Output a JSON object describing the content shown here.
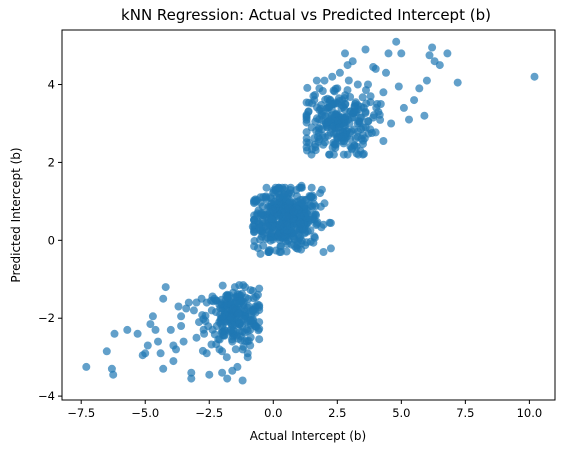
{
  "chart_data": {
    "type": "scatter",
    "title": "kNN Regression: Actual vs Predicted Intercept (b)",
    "xlabel": "Actual Intercept (b)",
    "ylabel": "Predicted Intercept (b)",
    "xlim": [
      -8.25,
      11.0
    ],
    "ylim": [
      -4.1,
      5.4
    ],
    "xticks": [
      -7.5,
      -5.0,
      -2.5,
      0.0,
      2.5,
      5.0,
      7.5,
      10.0
    ],
    "xtick_labels": [
      "−7.5",
      "−5.0",
      "−2.5",
      "0.0",
      "2.5",
      "5.0",
      "7.5",
      "10.0"
    ],
    "yticks": [
      -4,
      -2,
      0,
      2,
      4
    ],
    "ytick_labels": [
      "−4",
      "−2",
      "0",
      "2",
      "4"
    ],
    "grid": false,
    "color": "#1f77b4",
    "series": [
      {
        "points": [
          [
            -7.3,
            -3.25
          ],
          [
            -6.5,
            -2.85
          ],
          [
            -6.3,
            -3.3
          ],
          [
            -6.25,
            -3.45
          ],
          [
            -6.2,
            -2.4
          ],
          [
            -5.7,
            -2.3
          ],
          [
            -5.3,
            -2.4
          ],
          [
            -5.0,
            -2.9
          ],
          [
            -4.9,
            -2.7
          ],
          [
            -4.8,
            -2.15
          ],
          [
            -4.7,
            -1.95
          ],
          [
            -4.5,
            -2.6
          ],
          [
            -4.4,
            -2.9
          ],
          [
            -4.3,
            -3.3
          ],
          [
            -4.3,
            -1.5
          ],
          [
            -4.2,
            -1.2
          ],
          [
            -4.0,
            -2.3
          ],
          [
            -3.9,
            -2.7
          ],
          [
            -3.8,
            -2.8
          ],
          [
            -3.7,
            -1.7
          ],
          [
            -3.6,
            -2.2
          ],
          [
            -3.5,
            -2.6
          ],
          [
            -3.4,
            -1.75
          ],
          [
            -3.3,
            -1.6
          ],
          [
            -3.2,
            -3.4
          ],
          [
            -3.2,
            -3.55
          ],
          [
            -3.0,
            -2.5
          ],
          [
            -2.9,
            -2.1
          ],
          [
            -2.8,
            -1.5
          ],
          [
            -2.6,
            -2.9
          ],
          [
            -2.5,
            -3.45
          ],
          [
            -2.3,
            -1.5
          ],
          [
            -2.1,
            -2.8
          ],
          [
            -2.0,
            -3.4
          ],
          [
            -2.0,
            -2.85
          ],
          [
            -1.8,
            -3.55
          ],
          [
            -1.6,
            -3.35
          ],
          [
            -1.5,
            -1.9
          ],
          [
            -1.4,
            -3.25
          ],
          [
            -1.2,
            -3.6
          ],
          [
            -1.0,
            -3.0
          ],
          [
            -0.9,
            -2.3
          ],
          [
            -0.7,
            -1.7
          ],
          [
            -1.8,
            -1.4
          ],
          [
            -3.6,
            -1.95
          ],
          [
            -3.1,
            -1.8
          ],
          [
            -2.7,
            -2.4
          ],
          [
            -4.6,
            -2.3
          ],
          [
            -5.1,
            -2.95
          ],
          [
            -3.9,
            -3.1
          ],
          [
            10.2,
            4.2
          ],
          [
            7.2,
            4.05
          ],
          [
            6.8,
            4.8
          ],
          [
            6.5,
            4.5
          ],
          [
            6.3,
            4.6
          ],
          [
            6.2,
            4.95
          ],
          [
            6.1,
            4.75
          ],
          [
            5.7,
            3.9
          ],
          [
            6.0,
            4.1
          ],
          [
            5.9,
            3.2
          ],
          [
            5.5,
            3.6
          ],
          [
            5.3,
            3.1
          ],
          [
            4.8,
            5.1
          ],
          [
            4.5,
            4.8
          ],
          [
            4.9,
            3.95
          ],
          [
            4.4,
            4.3
          ],
          [
            4.3,
            3.8
          ],
          [
            4.1,
            3.3
          ],
          [
            4.0,
            4.4
          ],
          [
            3.9,
            4.45
          ],
          [
            3.7,
            4.0
          ],
          [
            3.6,
            4.9
          ],
          [
            3.5,
            2.7
          ],
          [
            3.4,
            2.3
          ],
          [
            3.9,
            3.15
          ],
          [
            4.3,
            2.55
          ],
          [
            4.6,
            3.0
          ],
          [
            5.1,
            3.4
          ],
          [
            3.2,
            3.5
          ],
          [
            2.9,
            4.5
          ],
          [
            2.8,
            4.8
          ],
          [
            2.6,
            4.3
          ],
          [
            2.5,
            3.9
          ],
          [
            2.7,
            3.1
          ],
          [
            2.9,
            2.2
          ],
          [
            2.0,
            4.1
          ],
          [
            1.9,
            3.2
          ],
          [
            1.6,
            3.6
          ],
          [
            1.5,
            2.9
          ],
          [
            1.4,
            2.5
          ],
          [
            1.7,
            4.1
          ],
          [
            3.0,
            2.6
          ],
          [
            3.3,
            3.0
          ],
          [
            3.5,
            2.2
          ],
          [
            5.0,
            4.8
          ],
          [
            3.1,
            4.6
          ],
          [
            2.3,
            3.5
          ],
          [
            2.4,
            2.9
          ],
          [
            1.8,
            2.6
          ],
          [
            2.2,
            2.2
          ],
          [
            0.1,
            1.3
          ],
          [
            -0.7,
            1.05
          ],
          [
            -0.8,
            0.35
          ],
          [
            -0.6,
            -0.2
          ],
          [
            -0.5,
            -0.35
          ],
          [
            -0.2,
            -0.3
          ],
          [
            0.3,
            -0.15
          ],
          [
            0.6,
            0.35
          ],
          [
            0.9,
            -0.2
          ],
          [
            1.3,
            -0.05
          ],
          [
            2.2,
            0.45
          ],
          [
            2.0,
            0.95
          ],
          [
            1.9,
            1.3
          ],
          [
            1.5,
            1.35
          ],
          [
            1.1,
            1.4
          ],
          [
            0.7,
            1.2
          ],
          [
            0.4,
            1.3
          ],
          [
            -0.3,
            1.1
          ],
          [
            -0.4,
            0.7
          ],
          [
            1.6,
            0.1
          ],
          [
            -1.1,
            -1.2
          ],
          [
            -1.5,
            -1.6
          ],
          [
            -2.4,
            -1.8
          ],
          [
            -1.7,
            -2.0
          ],
          [
            -1.1,
            -1.9
          ],
          [
            -1.3,
            -2.35
          ],
          [
            -2.2,
            -2.2
          ],
          [
            -0.9,
            -2.7
          ],
          [
            -1.6,
            -2.6
          ],
          [
            -0.6,
            -1.4
          ],
          [
            -0.7,
            -2.2
          ],
          [
            -1.2,
            -2.8
          ],
          [
            -2.6,
            -1.6
          ],
          [
            -1.9,
            -2.45
          ],
          [
            -1.5,
            -1.2
          ],
          [
            -1.3,
            -1.5
          ],
          [
            -2.0,
            -1.65
          ],
          [
            -0.8,
            -1.3
          ],
          [
            -1.0,
            -2.9
          ],
          [
            -1.4,
            -2.1
          ],
          [
            2.1,
            2.9
          ],
          [
            2.7,
            3.6
          ],
          [
            3.0,
            3.3
          ],
          [
            3.6,
            3.3
          ],
          [
            4.2,
            3.5
          ],
          [
            3.8,
            3.7
          ],
          [
            2.5,
            3.0
          ],
          [
            1.8,
            3.9
          ],
          [
            2.3,
            4.2
          ],
          [
            3.3,
            4.0
          ]
        ]
      }
    ],
    "clusters": [
      {
        "cx": 0.5,
        "cy": 0.55,
        "sx": 0.65,
        "sy": 0.38,
        "n": 420,
        "xmin": -0.75,
        "xmax": 2.25,
        "ymin": -0.3,
        "ymax": 1.35
      },
      {
        "cx": -1.5,
        "cy": -1.95,
        "sx": 0.55,
        "sy": 0.35,
        "n": 200,
        "xmin": -3.0,
        "xmax": -0.55,
        "ymin": -3.0,
        "ymax": -1.15
      },
      {
        "cx": 2.5,
        "cy": 3.05,
        "sx": 0.7,
        "sy": 0.45,
        "n": 210,
        "xmin": 1.3,
        "xmax": 4.6,
        "ymin": 2.2,
        "ymax": 4.2
      }
    ]
  }
}
